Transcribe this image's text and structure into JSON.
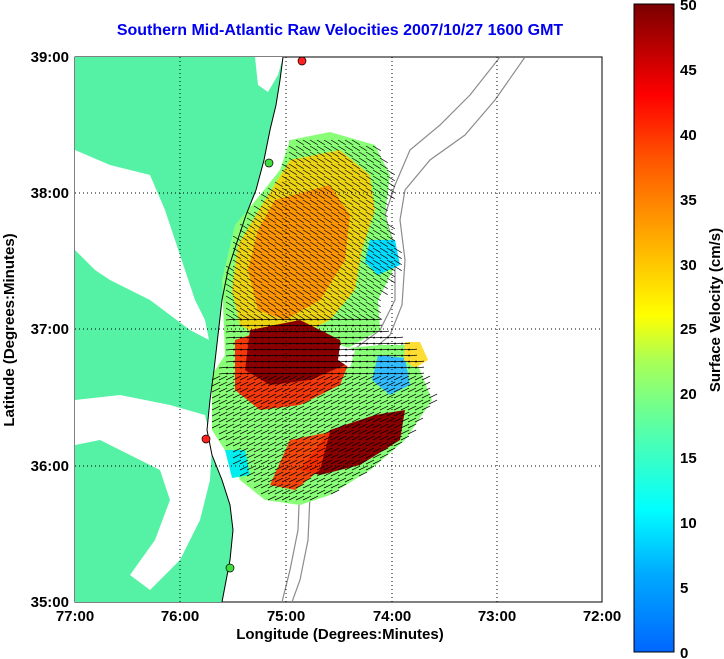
{
  "title": "Southern Mid-Atlantic Raw Velocities 2007/10/27 1600 GMT",
  "xlabel": "Longitude (Degrees:Minutes)",
  "ylabel": "Latitude (Degrees:Minutes)",
  "colorbar_label": "Surface Velocity (cm/s)",
  "x_ticks": [
    "77:00",
    "76:00",
    "75:00",
    "74:00",
    "73:00",
    "72:00"
  ],
  "y_ticks": [
    "39:00",
    "38:00",
    "37:00",
    "36:00",
    "35:00"
  ],
  "colorbar_ticks": [
    "50",
    "45",
    "40",
    "35",
    "30",
    "25",
    "20",
    "15",
    "10",
    "5",
    "0"
  ],
  "colors": {
    "land": "#55f2a6",
    "title": "#0000ee",
    "station": "#ff2020",
    "station_alt": "#40dd40",
    "contour": "#8c8c8c"
  }
}
